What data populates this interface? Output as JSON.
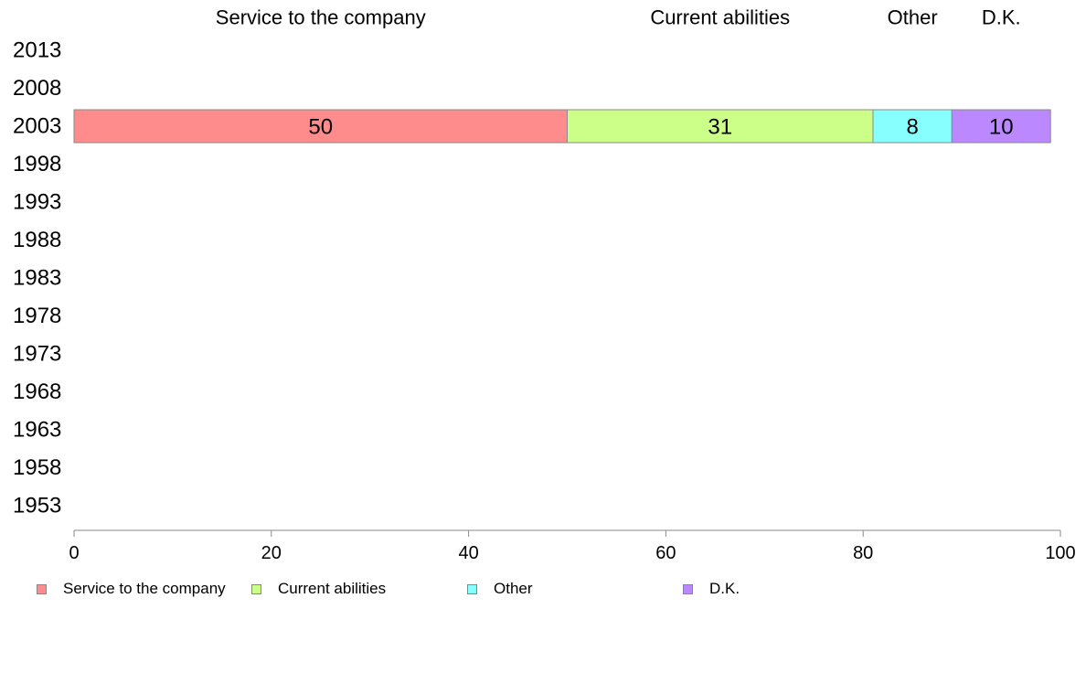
{
  "chart_data": {
    "type": "bar",
    "orientation": "horizontal",
    "stacked": true,
    "categories": [
      "2013",
      "2008",
      "2003",
      "1998",
      "1993",
      "1988",
      "1983",
      "1978",
      "1973",
      "1968",
      "1963",
      "1958",
      "1953"
    ],
    "series": [
      {
        "name": "Service to the company",
        "color": "#ff8c8c",
        "values": [
          null,
          null,
          50,
          null,
          null,
          null,
          null,
          null,
          null,
          null,
          null,
          null,
          null
        ]
      },
      {
        "name": "Current abilities",
        "color": "#ccff88",
        "values": [
          null,
          null,
          31,
          null,
          null,
          null,
          null,
          null,
          null,
          null,
          null,
          null,
          null
        ]
      },
      {
        "name": "Other",
        "color": "#88ffff",
        "values": [
          null,
          null,
          8,
          null,
          null,
          null,
          null,
          null,
          null,
          null,
          null,
          null,
          null
        ]
      },
      {
        "name": "D.K.",
        "color": "#bb88ff",
        "values": [
          null,
          null,
          10,
          null,
          null,
          null,
          null,
          null,
          null,
          null,
          null,
          null,
          null
        ]
      }
    ],
    "xlim": [
      0,
      100
    ],
    "xticks": [
      "0",
      "20",
      "40",
      "60",
      "80",
      "100"
    ],
    "grid": false,
    "legend_position": "bottom",
    "header_labels": "top"
  }
}
